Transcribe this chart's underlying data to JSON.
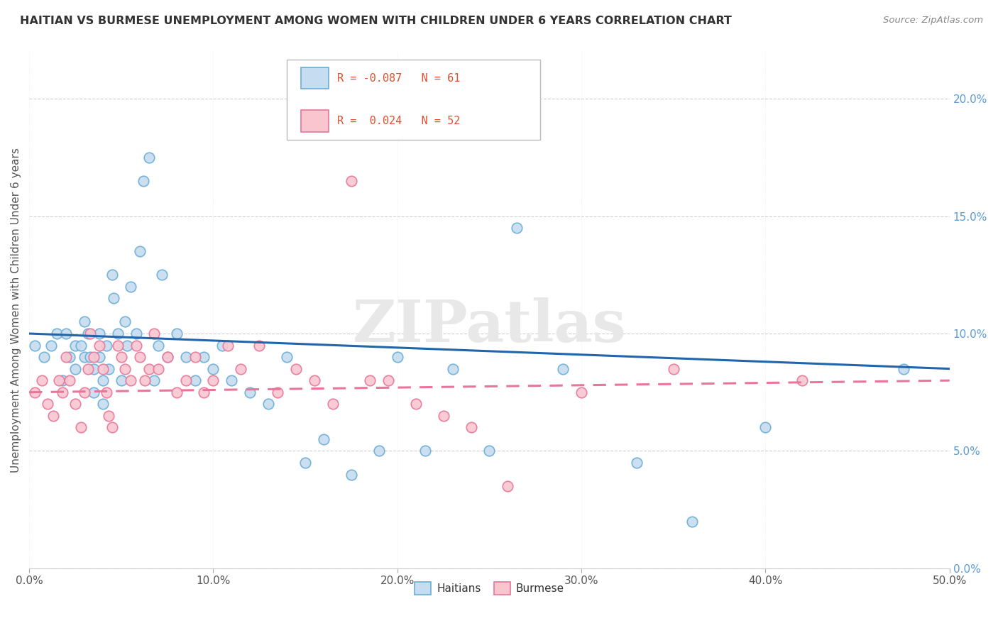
{
  "title": "HAITIAN VS BURMESE UNEMPLOYMENT AMONG WOMEN WITH CHILDREN UNDER 6 YEARS CORRELATION CHART",
  "source": "Source: ZipAtlas.com",
  "ylabel": "Unemployment Among Women with Children Under 6 years",
  "xlim": [
    0.0,
    0.5
  ],
  "ylim": [
    0.0,
    0.22
  ],
  "R_haitian": -0.087,
  "N_haitian": 61,
  "R_burmese": 0.024,
  "N_burmese": 52,
  "haitian_color": "#c6dcf0",
  "haitian_edge": "#6aaed6",
  "burmese_color": "#f9c6d0",
  "burmese_edge": "#e8769a",
  "trendline_haitian_color": "#2166ac",
  "trendline_burmese_color": "#e8769a",
  "watermark": "ZIPatlas",
  "background_color": "#ffffff",
  "grid_color": "#d0d0d0",
  "right_tick_color": "#5b9bd5",
  "haitian_x": [
    0.003,
    0.008,
    0.012,
    0.015,
    0.018,
    0.02,
    0.022,
    0.025,
    0.025,
    0.028,
    0.03,
    0.03,
    0.032,
    0.033,
    0.035,
    0.035,
    0.038,
    0.038,
    0.04,
    0.04,
    0.042,
    0.043,
    0.045,
    0.046,
    0.048,
    0.05,
    0.052,
    0.053,
    0.055,
    0.058,
    0.06,
    0.062,
    0.065,
    0.068,
    0.07,
    0.072,
    0.075,
    0.08,
    0.085,
    0.09,
    0.095,
    0.1,
    0.105,
    0.11,
    0.12,
    0.13,
    0.14,
    0.15,
    0.16,
    0.175,
    0.19,
    0.2,
    0.215,
    0.23,
    0.25,
    0.265,
    0.29,
    0.33,
    0.36,
    0.4,
    0.475
  ],
  "haitian_y": [
    0.095,
    0.09,
    0.095,
    0.1,
    0.08,
    0.1,
    0.09,
    0.085,
    0.095,
    0.095,
    0.105,
    0.09,
    0.1,
    0.09,
    0.085,
    0.075,
    0.09,
    0.1,
    0.08,
    0.07,
    0.095,
    0.085,
    0.125,
    0.115,
    0.1,
    0.08,
    0.105,
    0.095,
    0.12,
    0.1,
    0.135,
    0.165,
    0.175,
    0.08,
    0.095,
    0.125,
    0.09,
    0.1,
    0.09,
    0.08,
    0.09,
    0.085,
    0.095,
    0.08,
    0.075,
    0.07,
    0.09,
    0.045,
    0.055,
    0.04,
    0.05,
    0.09,
    0.05,
    0.085,
    0.05,
    0.145,
    0.085,
    0.045,
    0.02,
    0.06,
    0.085
  ],
  "burmese_x": [
    0.003,
    0.007,
    0.01,
    0.013,
    0.016,
    0.018,
    0.02,
    0.022,
    0.025,
    0.028,
    0.03,
    0.032,
    0.033,
    0.035,
    0.038,
    0.04,
    0.042,
    0.043,
    0.045,
    0.048,
    0.05,
    0.052,
    0.055,
    0.058,
    0.06,
    0.063,
    0.065,
    0.068,
    0.07,
    0.075,
    0.08,
    0.085,
    0.09,
    0.095,
    0.1,
    0.108,
    0.115,
    0.125,
    0.135,
    0.145,
    0.155,
    0.165,
    0.175,
    0.185,
    0.195,
    0.21,
    0.225,
    0.24,
    0.26,
    0.3,
    0.35,
    0.42
  ],
  "burmese_y": [
    0.075,
    0.08,
    0.07,
    0.065,
    0.08,
    0.075,
    0.09,
    0.08,
    0.07,
    0.06,
    0.075,
    0.085,
    0.1,
    0.09,
    0.095,
    0.085,
    0.075,
    0.065,
    0.06,
    0.095,
    0.09,
    0.085,
    0.08,
    0.095,
    0.09,
    0.08,
    0.085,
    0.1,
    0.085,
    0.09,
    0.075,
    0.08,
    0.09,
    0.075,
    0.08,
    0.095,
    0.085,
    0.095,
    0.075,
    0.085,
    0.08,
    0.07,
    0.165,
    0.08,
    0.08,
    0.07,
    0.065,
    0.06,
    0.035,
    0.075,
    0.085,
    0.08
  ]
}
